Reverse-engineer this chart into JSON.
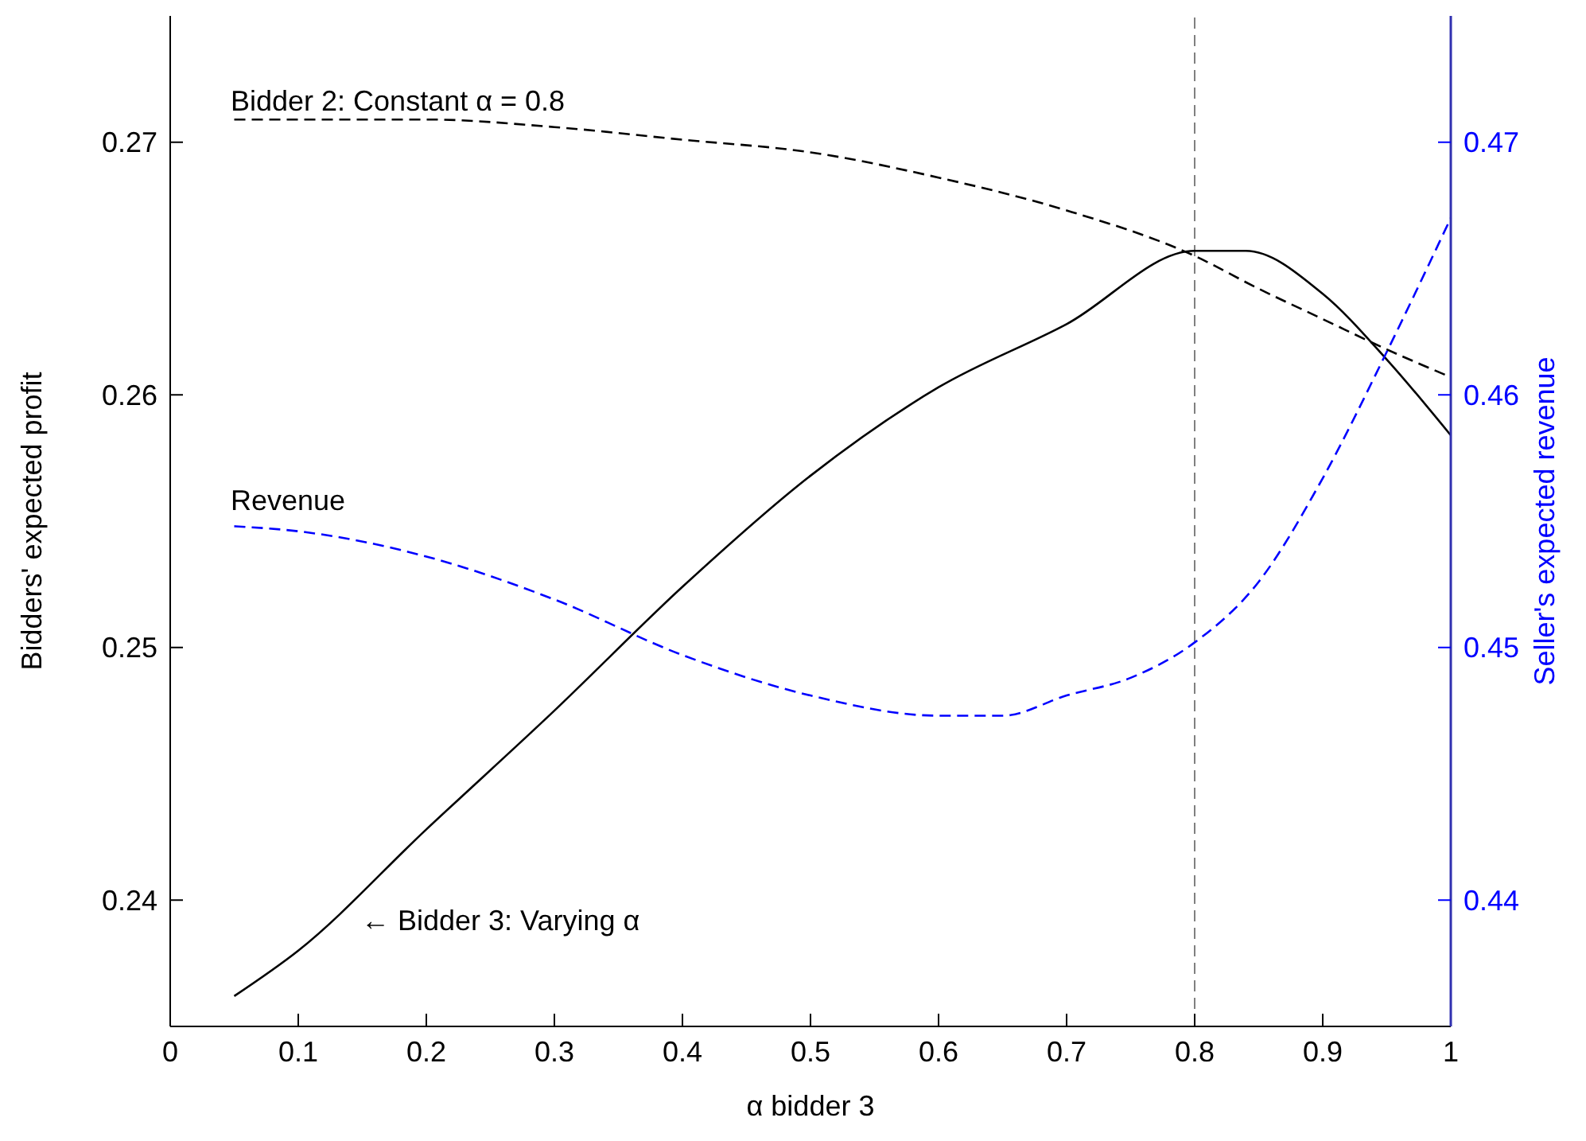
{
  "chart_data": {
    "type": "line",
    "xlabel": "α bidder 3",
    "ylabel": "Bidders' expected profit",
    "y2label": "Seller's expected revenue",
    "xlim": [
      0,
      1
    ],
    "xticks": [
      0,
      0.1,
      0.2,
      0.3,
      0.4,
      0.5,
      0.6,
      0.7,
      0.8,
      0.9,
      1
    ],
    "ylim": [
      0.235,
      0.275
    ],
    "yticks": [
      0.24,
      0.25,
      0.26,
      0.27
    ],
    "y2lim": [
      0.435,
      0.475
    ],
    "y2ticks": [
      0.44,
      0.45,
      0.46,
      0.47
    ],
    "grid": false,
    "marker": "none",
    "series": [
      {
        "color": "#000000",
        "line_style": "solid",
        "x": [
          0.05,
          0.1,
          0.2,
          0.3,
          0.4,
          0.5,
          0.6,
          0.7,
          0.8,
          0.84,
          0.9,
          0.95,
          1
        ],
        "values": [
          0.2362,
          0.238,
          0.2428,
          0.2475,
          0.2524,
          0.2568,
          0.2603,
          0.2628,
          0.2657,
          0.2657,
          0.264,
          0.2614,
          0.2584
        ]
      },
      {
        "color": "#000000",
        "line_style": "dashed",
        "x": [
          0.05,
          0.2,
          0.3,
          0.4,
          0.5,
          0.6,
          0.7,
          0.8,
          0.85,
          0.9,
          0.95,
          1
        ],
        "values": [
          0.2709,
          0.2709,
          0.2706,
          0.2701,
          0.2696,
          0.2686,
          0.2673,
          0.2655,
          0.2642,
          0.263,
          0.2618,
          0.2607
        ]
      },
      {
        "color": "#0000ff",
        "line_style": "dashed",
        "axis": "y2",
        "x": [
          0.05,
          0.1,
          0.2,
          0.3,
          0.4,
          0.5,
          0.6,
          0.65,
          0.7,
          0.75,
          0.8,
          0.85,
          0.9,
          0.95,
          1
        ],
        "values": [
          0.4548,
          0.4546,
          0.4536,
          0.4519,
          0.4497,
          0.4481,
          0.4473,
          0.4473,
          0.4481,
          0.4488,
          0.4502,
          0.4526,
          0.4567,
          0.4617,
          0.467
        ]
      }
    ],
    "ref_lines": [
      {
        "axis": "x",
        "value": 0.8,
        "color": "#808080",
        "line_style": "dashed"
      }
    ],
    "annotations": [
      "Bidder 2: Constant α = 0.8",
      "Revenue",
      "← Bidder 3: Varying α"
    ]
  }
}
